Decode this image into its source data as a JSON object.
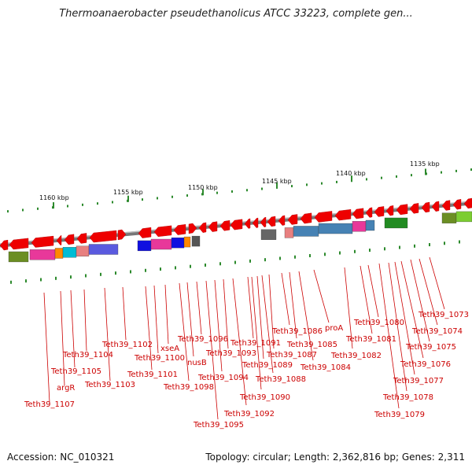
{
  "title": "Thermoanaerobacter pseudethanolicus ATCC 33223, complete gen...",
  "footer": {
    "accession": "Accession: NC_010321",
    "stats": "Topology: circular; Length: 2,362,816 bp; Genes: 2,311"
  },
  "kbp_labels": [
    "1160 kbp",
    "1155 kbp",
    "1150 kbp",
    "1145 kbp",
    "1140 kbp",
    "1135 kbp"
  ],
  "gene_labels": [
    "Teth39_1107",
    "argR",
    "Teth39_1105",
    "Teth39_1104",
    "Teth39_1103",
    "Teth39_1102",
    "Teth39_1101",
    "Teth39_1100",
    "xseA",
    "Teth39_1098",
    "nusB",
    "Teth39_1096",
    "Teth39_1095",
    "Teth39_1094",
    "Teth39_1093",
    "Teth39_1092",
    "Teth39_1091",
    "Teth39_1090",
    "Teth39_1089",
    "Teth39_1088",
    "Teth39_1087",
    "Teth39_1086",
    "Teth39_1085",
    "Teth39_1084",
    "proA",
    "Teth39_1082",
    "Teth39_1081",
    "Teth39_1080",
    "Teth39_1079",
    "Teth39_1078",
    "Teth39_1077",
    "Teth39_1076",
    "Teth39_1075",
    "Teth39_1074",
    "Teth39_1073"
  ],
  "colors": {
    "gene": "#ee0000",
    "backbone": "#888888",
    "gc_tick": "#228822",
    "label_line": "#cc0000"
  }
}
